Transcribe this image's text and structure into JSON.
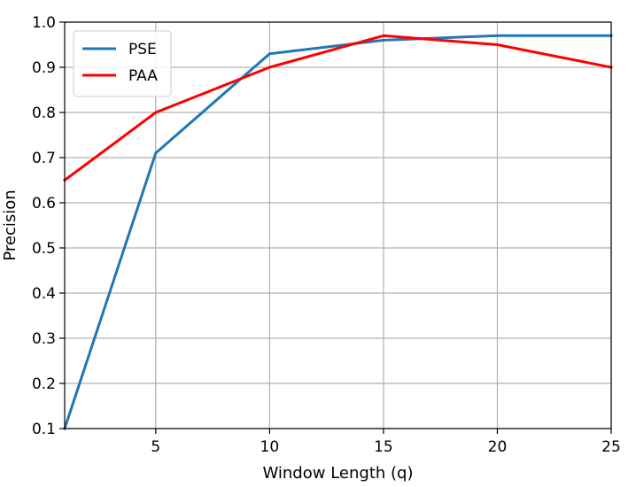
{
  "chart_data": {
    "type": "line",
    "xlabel": "Window Length (q)",
    "ylabel": "Precision",
    "xlim": [
      1,
      25
    ],
    "ylim": [
      0.1,
      1.0
    ],
    "xticks": [
      5,
      10,
      15,
      20,
      25
    ],
    "yticks": [
      0.1,
      0.2,
      0.3,
      0.4,
      0.5,
      0.6,
      0.7,
      0.8,
      0.9,
      1.0
    ],
    "xtick_labels": [
      "5",
      "10",
      "15",
      "20",
      "25"
    ],
    "ytick_labels": [
      "0.1",
      "0.2",
      "0.3",
      "0.4",
      "0.5",
      "0.6",
      "0.7",
      "0.8",
      "0.9",
      "1.0"
    ],
    "grid": true,
    "legend_position": "top-left",
    "series": [
      {
        "name": "PSE",
        "color": "#1f77b4",
        "x": [
          1,
          5,
          10,
          15,
          20,
          25
        ],
        "values": [
          0.1,
          0.71,
          0.93,
          0.96,
          0.97,
          0.97
        ]
      },
      {
        "name": "PAA",
        "color": "#ff0000",
        "x": [
          1,
          5,
          10,
          15,
          20,
          25
        ],
        "values": [
          0.65,
          0.8,
          0.9,
          0.97,
          0.95,
          0.9
        ]
      }
    ]
  }
}
